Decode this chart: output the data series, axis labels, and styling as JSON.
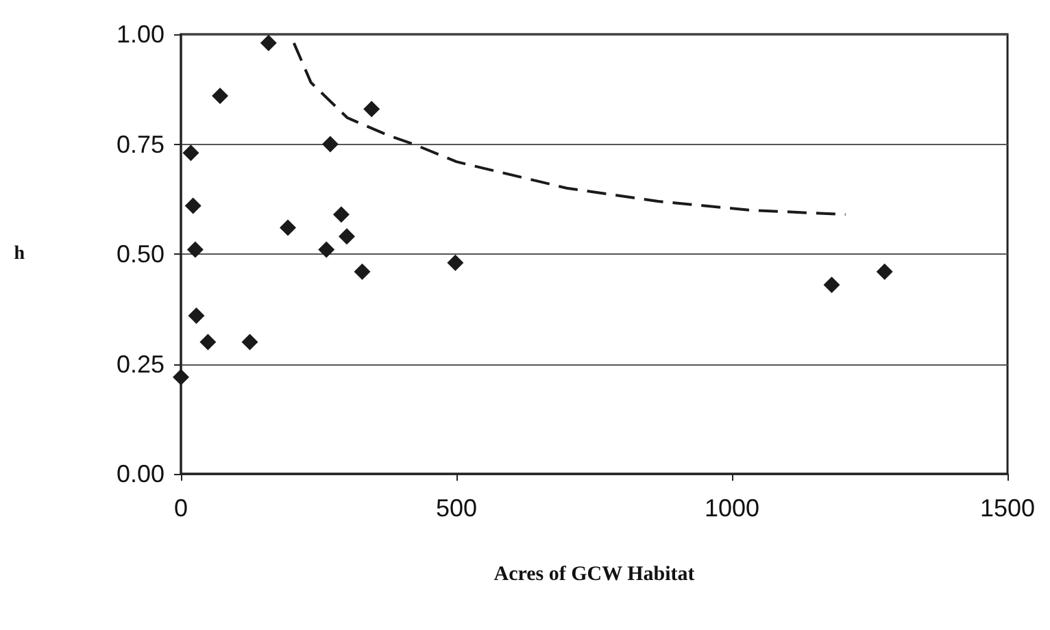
{
  "chart_data": {
    "type": "scatter",
    "xlabel": "Acres of GCW Habitat",
    "ylabel": "h",
    "xlim": [
      0,
      1500
    ],
    "xticks": [
      0,
      500,
      1000,
      1500
    ],
    "ylim": [
      0,
      1
    ],
    "yticks": [
      {
        "value": 0,
        "label": "0.00"
      },
      {
        "value": 0.25,
        "label": "0.25"
      },
      {
        "value": 0.5,
        "label": "0.50"
      },
      {
        "value": 0.75,
        "label": "0.75"
      },
      {
        "value": 1,
        "label": "1.00"
      }
    ],
    "grid": "y",
    "marker": "diamond",
    "series": [
      {
        "color": "#1a1a1a",
        "x": [
          0,
          18,
          22,
          26,
          28,
          49,
          71,
          125,
          159,
          194,
          264,
          271,
          291,
          301,
          329,
          346,
          498,
          1181,
          1277
        ],
        "values": [
          0.22,
          0.73,
          0.61,
          0.51,
          0.36,
          0.3,
          0.86,
          0.3,
          0.98,
          0.56,
          0.51,
          0.75,
          0.59,
          0.54,
          0.46,
          0.83,
          0.48,
          0.43,
          0.46
        ]
      },
      {
        "type": "line",
        "color": "#1a1a1a",
        "line_style": "dashed",
        "marker": "none",
        "x": [
          205,
          236,
          302,
          376,
          422,
          500,
          700,
          866,
          1031,
          1206
        ],
        "values": [
          0.98,
          0.89,
          0.81,
          0.77,
          0.75,
          0.71,
          0.65,
          0.62,
          0.6,
          0.59
        ]
      }
    ]
  }
}
